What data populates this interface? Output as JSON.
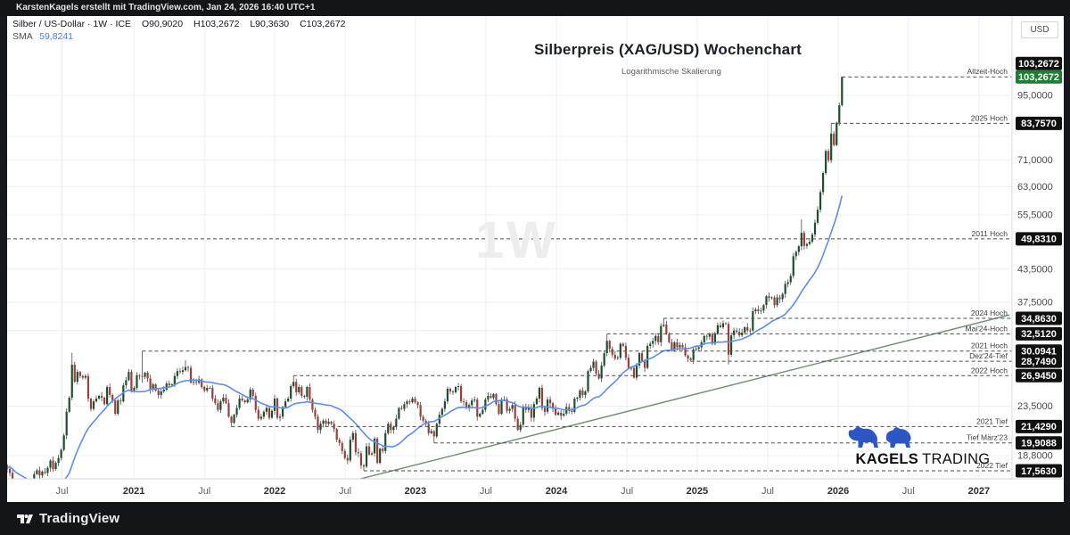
{
  "frame": {
    "top_bar_text": "KarstenKagels erstellt mit TradingView.com, Jan 24, 2026 16:40 UTC+1",
    "bottom_brand": "TradingView"
  },
  "legend": {
    "symbol_line": "Silber / US-Dollar · 1W · ICE",
    "o_label": "O",
    "o": "90,9020",
    "h_label": "H",
    "h": "103,2672",
    "l_label": "L",
    "l": "90,3630",
    "c_label": "C",
    "c": "103,2672",
    "sma_label": "SMA",
    "sma_value": "59,8241"
  },
  "title": "Silberpreis (XAG/USD) Wochenchart",
  "subtitle": "Logarithmische Skalierung",
  "watermark": "1W",
  "axis": {
    "currency": "USD"
  },
  "branding": {
    "kagels_bold": "KAGELS",
    "kagels_light": "TRADING"
  },
  "chart_data": {
    "type": "candlestick",
    "symbol": "XAG/USD",
    "timeframe": "1W",
    "scale": "log",
    "colors": {
      "up": "#1c4f2a",
      "down": "#9c3e3a",
      "wick": "#4a4a4a",
      "sma": "#5b8ef0",
      "trend": "#6a9070",
      "level_line": "#4d4d4d",
      "grid": "#efefef",
      "badge_bg": "#101010",
      "badge_current_bg": "#1e7d33",
      "tick_text": "#4a4a4a",
      "level_text": "#3c3c3c",
      "xtick_year": "#2e2e2e",
      "xtick_month": "#5e5e5e"
    },
    "x_axis": {
      "ticks": [
        {
          "label": "Jul",
          "i": 21.3,
          "bold": false
        },
        {
          "label": "2021",
          "i": 47.9,
          "bold": true
        },
        {
          "label": "Jul",
          "i": 74.0,
          "bold": false
        },
        {
          "label": "2022",
          "i": 100.0,
          "bold": true
        },
        {
          "label": "Jul",
          "i": 126.1,
          "bold": false
        },
        {
          "label": "2023",
          "i": 152.1,
          "bold": true
        },
        {
          "label": "Jul",
          "i": 178.2,
          "bold": false
        },
        {
          "label": "2024",
          "i": 204.3,
          "bold": true
        },
        {
          "label": "Jul",
          "i": 230.4,
          "bold": false
        },
        {
          "label": "2025",
          "i": 256.4,
          "bold": true
        },
        {
          "label": "Jul",
          "i": 282.5,
          "bold": false
        },
        {
          "label": "2026",
          "i": 308.6,
          "bold": true
        },
        {
          "label": "Jul",
          "i": 334.6,
          "bold": false
        },
        {
          "label": "2027",
          "i": 360.7,
          "bold": true
        }
      ]
    },
    "y_axis": {
      "currency_label": "USD",
      "plain_ticks": [
        {
          "label": "95,0000",
          "p": 95
        },
        {
          "label": "71,0000",
          "p": 71
        },
        {
          "label": "63,0000",
          "p": 63
        },
        {
          "label": "55,5000",
          "p": 55.5
        },
        {
          "label": "43,5000",
          "p": 43.5
        },
        {
          "label": "37,5000",
          "p": 37.5
        },
        {
          "label": "23,5000",
          "p": 23.5
        },
        {
          "label": "18,8000",
          "p": 18.8
        }
      ],
      "gridlines": [
        95,
        79,
        71,
        63,
        55.5,
        43.5,
        37.5,
        33,
        23.5,
        18.8
      ]
    },
    "levels": [
      {
        "label": "Allzeit-Hoch",
        "price": 103.2672,
        "display": "103,2672",
        "from_i": 310,
        "badge_dy": -15
      },
      {
        "label": "2025 Hoch",
        "price": 83.757,
        "display": "83,7570",
        "from_i": 306,
        "badge_dy": 0
      },
      {
        "label": "2011 Hoch",
        "price": 49.831,
        "display": "49,8310",
        "from_i": null,
        "badge_dy": 0
      },
      {
        "label": "2024 Hoch",
        "price": 34.863,
        "display": "34,8630",
        "from_i": 244,
        "badge_dy": 0
      },
      {
        "label": "Mai'24-Hoch",
        "price": 32.512,
        "display": "32,5120",
        "from_i": 223,
        "badge_dy": 0
      },
      {
        "label": "2021 Hoch",
        "price": 30.0941,
        "display": "30,0941",
        "from_i": 51,
        "badge_dy": 0
      },
      {
        "label": "Dez'24-Tief",
        "price": 28.749,
        "display": "28,7490",
        "from_i": 254,
        "badge_dy": 0
      },
      {
        "label": "2022 Hoch",
        "price": 26.945,
        "display": "26,9450",
        "from_i": 107,
        "badge_dy": 0
      },
      {
        "label": "2021 Tief",
        "price": 21.429,
        "display": "21,4290",
        "from_i": 84,
        "badge_dy": 0
      },
      {
        "label": "Tief März'23",
        "price": 19.9088,
        "display": "19,9088",
        "from_i": 159,
        "badge_dy": 0
      },
      {
        "label": "2022 Tief",
        "price": 17.563,
        "display": "17,5630",
        "from_i": 133,
        "badge_dy": 0
      }
    ],
    "current_price": {
      "price": 103.2672,
      "display": "103,2672"
    },
    "trendline": {
      "points": [
        {
          "i": 130,
          "p": 16.85
        },
        {
          "i": 372,
          "p": 35.4
        }
      ]
    },
    "sma": {
      "period": 22,
      "pre": [
        17.1,
        17.3,
        17.5,
        17.4,
        17.6,
        17.8,
        17.7,
        17.9,
        18.0,
        17.8,
        17.9,
        18.1,
        17.9,
        18.0,
        17.8,
        17.9,
        18.0,
        18.1,
        17.9,
        18.0,
        17.8,
        17.9
      ]
    },
    "candles": {
      "first_open": 18.2,
      "closes": [
        18.0,
        17.7,
        17.4,
        14.4,
        12.6,
        14.6,
        15.2,
        15.1,
        15.3,
        15.0,
        15.5,
        17.3,
        17.6,
        17.2,
        17.5,
        17.4,
        17.8,
        18.4,
        17.7,
        18.2,
        18.6,
        19.3,
        20.6,
        22.9,
        24.4,
        28.3,
        26.2,
        27.4,
        26.9,
        26.7,
        26.9,
        24.3,
        23.2,
        24.0,
        24.3,
        24.6,
        24.4,
        23.7,
        25.6,
        24.7,
        24.1,
        22.7,
        24.1,
        24.0,
        25.8,
        26.4,
        27.4,
        25.2,
        25.5,
        27.0,
        26.9,
        26.8,
        27.3,
        26.6,
        25.3,
        25.9,
        25.2,
        24.7,
        25.1,
        25.3,
        26.0,
        25.8,
        25.9,
        26.9,
        27.5,
        27.4,
        27.6,
        28.0,
        27.9,
        26.1,
        26.2,
        26.1,
        26.5,
        25.6,
        25.2,
        25.5,
        25.5,
        24.3,
        23.8,
        23.1,
        24.0,
        24.4,
        23.8,
        22.4,
        21.8,
        22.6,
        23.3,
        24.3,
        24.1,
        23.9,
        24.2,
        25.3,
        24.6,
        23.1,
        22.2,
        22.4,
        22.9,
        23.3,
        22.3,
        23.0,
        24.3,
        22.3,
        22.4,
        23.4,
        24.0,
        24.3,
        25.7,
        26.2,
        25.0,
        25.6,
        24.6,
        24.5,
        25.6,
        24.2,
        23.1,
        22.4,
        21.1,
        21.7,
        22.0,
        21.7,
        21.9,
        21.7,
        21.2,
        20.2,
        19.9,
        19.2,
        18.6,
        18.4,
        20.2,
        20.8,
        19.1,
        19.0,
        18.0,
        17.9,
        19.6,
        18.9,
        19.0,
        20.3,
        18.2,
        19.4,
        19.2,
        20.8,
        21.7,
        21.1,
        21.4,
        22.2,
        23.3,
        23.2,
        23.7,
        24.0,
        23.9,
        24.3,
        23.9,
        23.6,
        22.4,
        22.0,
        21.7,
        20.8,
        21.0,
        20.5,
        21.7,
        22.6,
        23.2,
        24.0,
        25.4,
        25.1,
        25.0,
        25.6,
        25.7,
        24.0,
        23.9,
        23.3,
        23.6,
        24.1,
        24.2,
        22.4,
        22.7,
        23.1,
        24.2,
        24.6,
        24.4,
        24.8,
        23.7,
        22.7,
        24.2,
        24.2,
        23.0,
        23.2,
        23.6,
        22.2,
        21.1,
        21.6,
        23.4,
        23.1,
        23.3,
        22.3,
        23.7,
        24.3,
        25.5,
        23.3,
        22.9,
        24.2,
        23.8,
        23.2,
        22.6,
        22.8,
        22.5,
        22.7,
        23.4,
        23.0,
        22.9,
        24.3,
        24.4,
        25.2,
        24.7,
        25.1,
        27.5,
        27.9,
        28.7,
        27.2,
        26.6,
        28.2,
        29.8,
        31.5,
        30.4,
        29.6,
        29.1,
        29.2,
        31.1,
        30.8,
        29.2,
        27.9,
        27.9,
        26.7,
        28.2,
        29.8,
        28.8,
        27.9,
        30.8,
        31.1,
        31.5,
        32.2,
        31.3,
        33.7,
        33.9,
        32.5,
        31.3,
        30.3,
        31.3,
        30.6,
        30.9,
        30.6,
        29.5,
        29.1,
        28.9,
        30.3,
        30.4,
        30.6,
        31.3,
        32.2,
        32.1,
        32.5,
        31.1,
        32.5,
        33.8,
        33.5,
        34.1,
        34.0,
        29.6,
        32.3,
        33.0,
        32.8,
        32.3,
        32.7,
        33.5,
        33.0,
        33.0,
        36.0,
        36.3,
        36.0,
        36.1,
        37.0,
        38.5,
        38.2,
        38.3,
        37.0,
        38.3,
        38.0,
        38.9,
        40.7,
        41.0,
        42.2,
        46.1,
        47.0,
        48.2,
        51.2,
        48.3,
        48.7,
        49.2,
        50.8,
        53.6,
        56.8,
        61.5,
        67.0,
        74.0,
        71.0,
        80.0,
        76.0,
        84.0,
        90.9,
        103.2672
      ],
      "wick_overrides": {
        "25": [
          29.86,
          24.1
        ],
        "51": [
          30.0941,
          26.1
        ],
        "67": [
          28.9,
          null
        ],
        "84": [
          null,
          21.429
        ],
        "107": [
          26.945,
          null
        ],
        "133": [
          null,
          17.563
        ],
        "159": [
          null,
          19.9088
        ],
        "223": [
          32.512,
          null
        ],
        "244": [
          34.863,
          null
        ],
        "254": [
          null,
          28.749
        ],
        "268": [
          null,
          28.31
        ],
        "295": [
          54.4,
          null
        ],
        "306": [
          83.757,
          null
        ],
        "310": [
          103.2672,
          90.363
        ]
      }
    }
  }
}
